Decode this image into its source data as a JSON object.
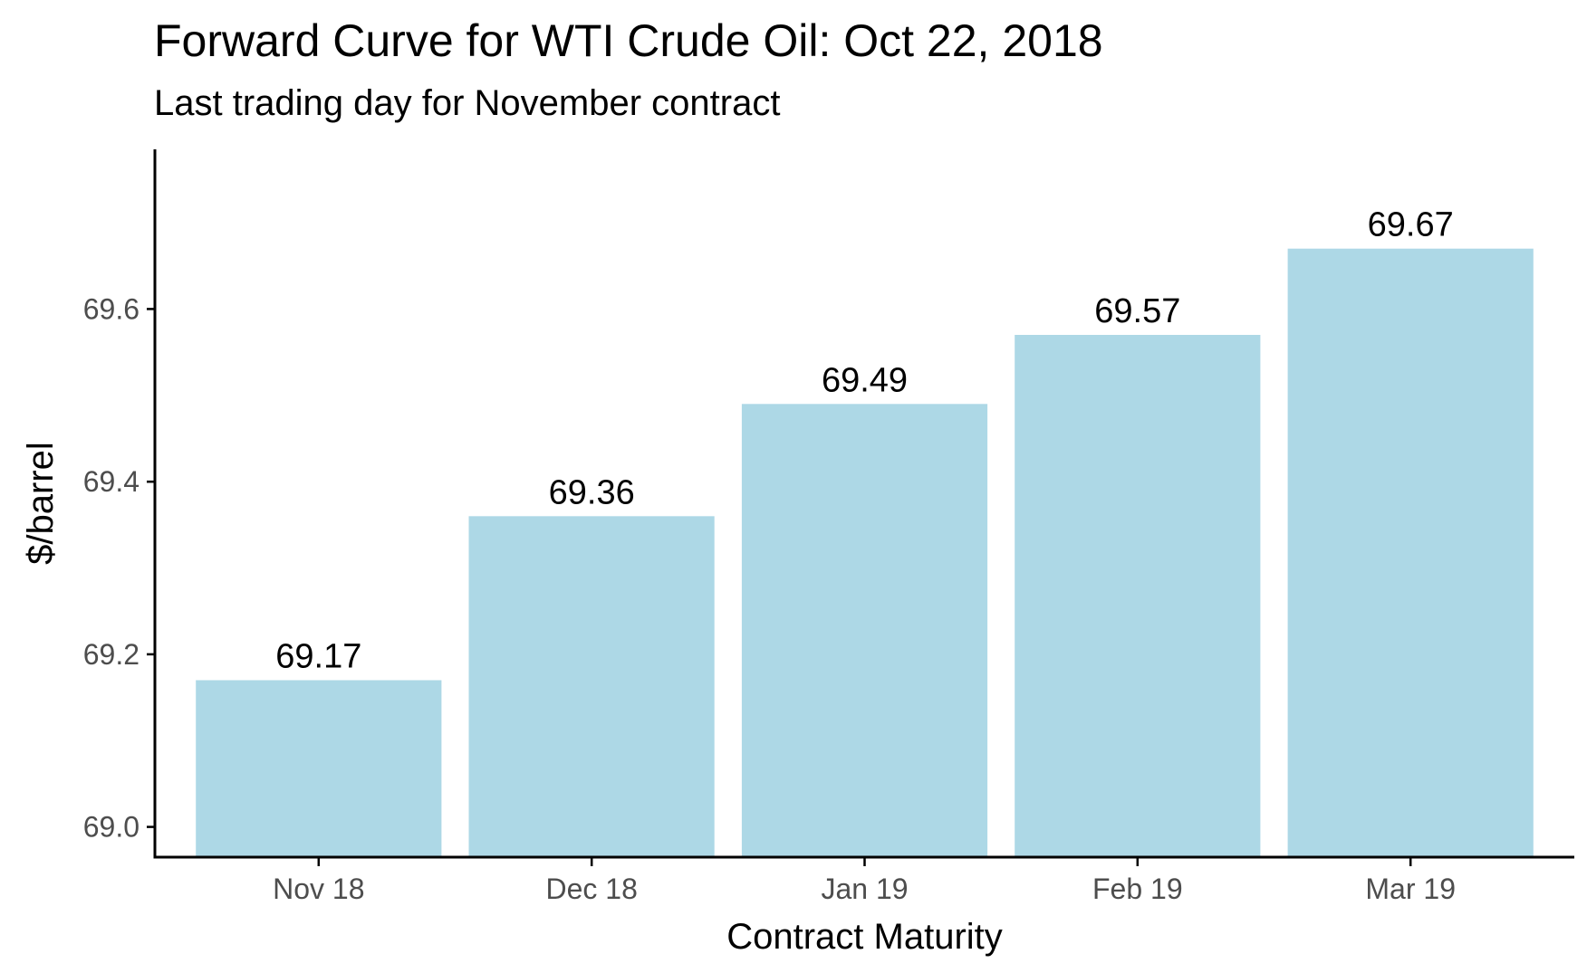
{
  "chart_data": {
    "type": "bar",
    "title": "Forward Curve for WTI Crude Oil: Oct 22, 2018",
    "subtitle": "Last trading day for November contract",
    "xlabel": "Contract Maturity",
    "ylabel": "$/barrel",
    "categories": [
      "Nov 18",
      "Dec 18",
      "Jan 19",
      "Feb 19",
      "Mar 19"
    ],
    "values": [
      69.17,
      69.36,
      69.49,
      69.57,
      69.67
    ],
    "data_labels": [
      "69.17",
      "69.36",
      "69.49",
      "69.57",
      "69.67"
    ],
    "yticks": [
      69.0,
      69.2,
      69.4,
      69.6
    ],
    "ytick_labels": [
      "69.0",
      "69.2",
      "69.4",
      "69.6"
    ],
    "ylim": [
      68.965,
      69.785
    ],
    "grid": false,
    "legend": "none",
    "colors": {
      "bar": "#add8e6",
      "axis": "#000000",
      "tick_label": "#4d4d4d",
      "text": "#000000"
    }
  }
}
